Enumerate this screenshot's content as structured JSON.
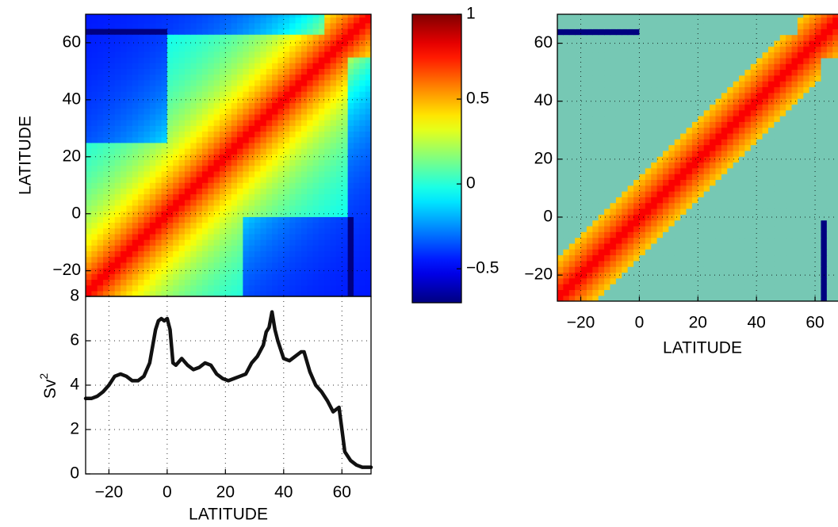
{
  "chart_data": [
    {
      "id": "corr_full",
      "type": "heatmap",
      "xlim": [
        -28,
        70
      ],
      "ylim": [
        -29,
        70
      ],
      "yticks": [
        -20,
        0,
        20,
        40,
        60
      ],
      "ytick_labels": [
        "−20",
        "0",
        "20",
        "40",
        "60"
      ],
      "ylabel": "LATITUDE",
      "colormap": "jet",
      "clim": [
        -0.7,
        1
      ],
      "grid": true
    },
    {
      "id": "colorbar",
      "type": "colorbar",
      "clim": [
        -0.7,
        1
      ],
      "ticks": [
        -0.5,
        0,
        0.5,
        1
      ],
      "tick_labels": [
        "−0.5",
        "0",
        "0.5",
        "1"
      ]
    },
    {
      "id": "variance",
      "type": "line",
      "xlabel": "LATITUDE",
      "ylabel": "Sv",
      "ylabel_sup": "2",
      "xlim": [
        -28,
        70
      ],
      "ylim": [
        0,
        8
      ],
      "xticks": [
        -20,
        0,
        20,
        40,
        60
      ],
      "xtick_labels": [
        "−20",
        "0",
        "20",
        "40",
        "60"
      ],
      "yticks": [
        0,
        2,
        4,
        6,
        8
      ],
      "ytick_labels": [
        "0",
        "2",
        "4",
        "6",
        "8"
      ],
      "grid": true,
      "color": "#111111",
      "x": [
        -28,
        -26,
        -24,
        -22,
        -20,
        -18,
        -16,
        -14,
        -12,
        -10,
        -8,
        -6,
        -4,
        -3,
        -2,
        -1,
        0,
        1,
        2,
        3,
        5,
        7,
        9,
        11,
        13,
        15,
        17,
        19,
        21,
        23,
        25,
        27,
        29,
        31,
        33,
        34,
        35,
        36,
        37,
        38,
        40,
        42,
        44,
        46,
        47,
        49,
        51,
        53,
        55,
        57,
        59,
        60,
        61,
        63,
        65,
        67,
        70
      ],
      "y": [
        3.4,
        3.4,
        3.5,
        3.7,
        4.0,
        4.4,
        4.5,
        4.4,
        4.2,
        4.2,
        4.4,
        5.0,
        6.5,
        6.9,
        7.0,
        6.9,
        7.0,
        6.5,
        5.0,
        4.9,
        5.2,
        4.9,
        4.7,
        4.8,
        5.0,
        4.9,
        4.5,
        4.3,
        4.2,
        4.3,
        4.4,
        4.5,
        5.0,
        5.3,
        5.8,
        6.4,
        6.6,
        7.3,
        6.5,
        6.0,
        5.2,
        5.1,
        5.3,
        5.5,
        5.5,
        4.6,
        4.0,
        3.7,
        3.3,
        2.8,
        3.0,
        2.0,
        1.0,
        0.6,
        0.4,
        0.3,
        0.3
      ]
    },
    {
      "id": "corr_significant",
      "type": "heatmap",
      "xlabel": "LATITUDE",
      "xlim": [
        -28,
        70
      ],
      "ylim": [
        -29,
        70
      ],
      "xticks": [
        -20,
        0,
        20,
        40,
        60
      ],
      "xtick_labels": [
        "−20",
        "0",
        "20",
        "40",
        "60"
      ],
      "yticks": [
        -20,
        0,
        20,
        40,
        60
      ],
      "ytick_labels": [
        "−20",
        "0",
        "20",
        "40",
        "60"
      ],
      "colormap": "jet",
      "clim": [
        -0.7,
        1
      ],
      "grid": true
    }
  ]
}
